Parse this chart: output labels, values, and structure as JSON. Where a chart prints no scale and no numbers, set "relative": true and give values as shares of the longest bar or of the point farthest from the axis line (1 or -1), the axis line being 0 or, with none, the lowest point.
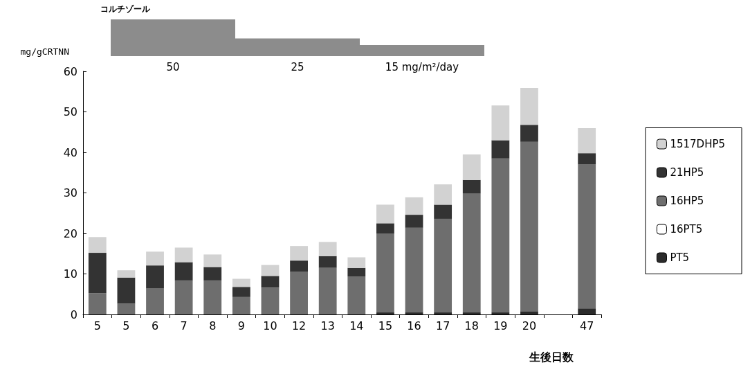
{
  "chart_data": [
    {
      "type": "bar",
      "title": "コルチゾール",
      "categories": [
        "50",
        "25",
        "15 mg/m²/day"
      ],
      "values": [
        1,
        0.48,
        0.3
      ],
      "color": "#8c8c8c",
      "relative": true
    },
    {
      "type": "bar",
      "xlabel": "生後日数",
      "ylabel": "mg/gCRTNN",
      "categories": [
        "5",
        "5",
        "6",
        "7",
        "8",
        "9",
        "10",
        "12",
        "13",
        "14",
        "15",
        "16",
        "17",
        "18",
        "19",
        "20",
        null,
        "47"
      ],
      "stacked": true,
      "ylim": [
        0,
        60
      ],
      "yticks": [
        0,
        10,
        20,
        30,
        40,
        50,
        60
      ],
      "legend": "right",
      "grid": false,
      "series": [
        {
          "name": "PT5",
          "color": "#2b2b2b",
          "values": [
            0,
            0,
            0,
            0,
            0,
            0,
            0,
            0,
            0,
            0,
            0.5,
            0.5,
            0.5,
            0.5,
            0.5,
            0.8,
            null,
            1.5
          ]
        },
        {
          "name": "16PT5",
          "color": "#ffffff",
          "values": [
            0,
            0,
            0,
            0,
            0,
            0,
            0,
            0,
            0,
            0,
            0,
            0,
            0,
            0,
            0,
            0,
            null,
            0
          ]
        },
        {
          "name": "16HP5",
          "color": "#6e6e6e",
          "values": [
            5.2,
            2.7,
            6.4,
            8.4,
            8.4,
            4.3,
            6.6,
            10.5,
            11.5,
            9.4,
            19.4,
            20.9,
            23.1,
            29.4,
            38.0,
            41.8,
            null,
            35.5
          ]
        },
        {
          "name": "21HP5",
          "color": "#333333",
          "values": [
            10.0,
            6.4,
            5.7,
            4.5,
            3.3,
            2.5,
            2.9,
            2.8,
            2.9,
            2.1,
            2.6,
            3.2,
            3.5,
            3.3,
            4.5,
            4.2,
            null,
            2.8
          ]
        },
        {
          "name": "1517DHP5",
          "color": "#d2d2d2",
          "values": [
            3.9,
            1.8,
            3.4,
            3.6,
            3.1,
            2.0,
            2.7,
            3.6,
            3.5,
            2.6,
            4.6,
            4.3,
            5.0,
            6.3,
            8.6,
            9.1,
            null,
            6.2
          ]
        }
      ]
    }
  ]
}
